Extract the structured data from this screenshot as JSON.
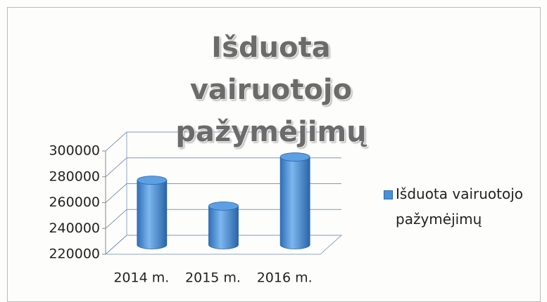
{
  "chart_data": {
    "type": "bar",
    "title": "Išduota vairuotojo pažymėjimų",
    "categories": [
      "2014 m.",
      "2015 m.",
      "2016 m."
    ],
    "series": [
      {
        "name": "Išduota vairuotojo pažymėjimų",
        "color": "#4a90d9",
        "values": [
          270000,
          250000,
          288000
        ]
      }
    ],
    "ylim": [
      220000,
      300000
    ],
    "yticks": [
      220000,
      240000,
      260000,
      280000,
      300000
    ],
    "grid": true,
    "legend": "right"
  }
}
